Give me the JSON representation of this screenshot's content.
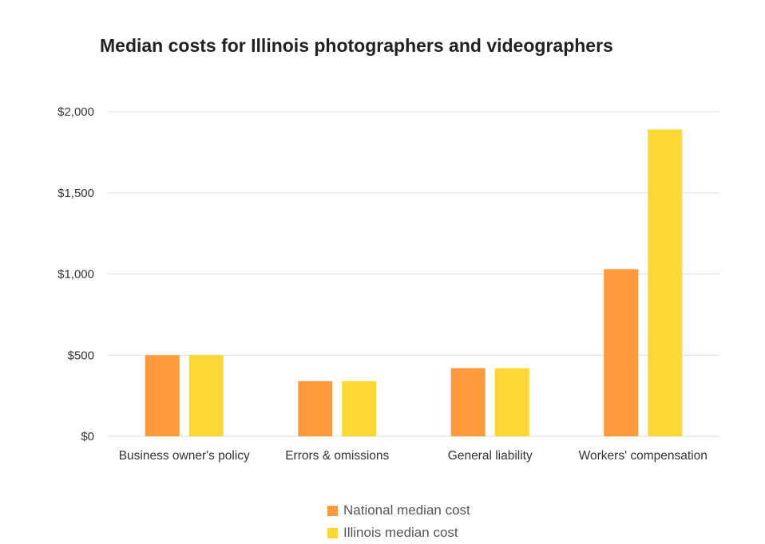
{
  "chart_data": {
    "type": "bar",
    "title": "Median costs for Illinois photographers and videographers",
    "xlabel": "",
    "ylabel": "",
    "categories": [
      "Business owner's policy",
      "Errors & omissions",
      "General liability",
      "Workers' compensation"
    ],
    "series": [
      {
        "name": "National median cost",
        "color": "#ff9a3c",
        "values": [
          500,
          340,
          420,
          1030
        ]
      },
      {
        "name": "Illinois median cost",
        "color": "#fdd835",
        "values": [
          500,
          340,
          420,
          1890
        ]
      }
    ],
    "ylim": [
      0,
      2000
    ],
    "yticks": [
      0,
      500,
      1000,
      1500,
      2000
    ],
    "ytick_labels": [
      "$0",
      "$500",
      "$1,000",
      "$1,500",
      "$2,000"
    ],
    "grid": true,
    "legend_position": "bottom",
    "colors": {
      "gridline": "#dddddd"
    }
  }
}
